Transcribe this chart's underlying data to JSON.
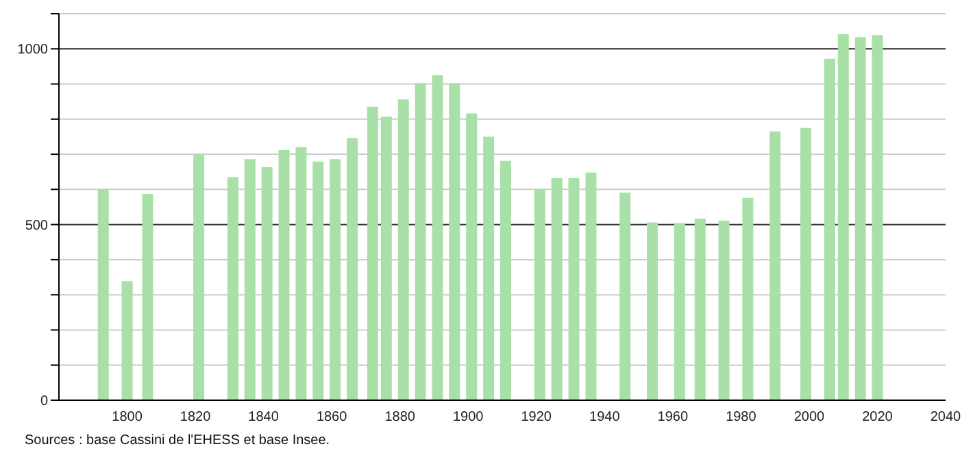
{
  "chart_data": {
    "type": "bar",
    "x": [
      1793,
      1800,
      1806,
      1821,
      1831,
      1836,
      1841,
      1846,
      1851,
      1856,
      1861,
      1866,
      1872,
      1876,
      1881,
      1886,
      1891,
      1896,
      1901,
      1906,
      1911,
      1921,
      1926,
      1931,
      1936,
      1946,
      1954,
      1962,
      1968,
      1975,
      1982,
      1990,
      1999,
      2006,
      2010,
      2015,
      2020
    ],
    "series": [
      {
        "color": "#a8e0a8",
        "values": [
          600,
          339,
          587,
          701,
          635,
          686,
          663,
          712,
          720,
          679,
          686,
          746,
          835,
          807,
          856,
          902,
          925,
          902,
          816,
          750,
          681,
          600,
          632,
          632,
          648,
          591,
          506,
          504,
          517,
          511,
          576,
          765,
          775,
          972,
          1042,
          1033,
          1039
        ]
      }
    ],
    "xlim": [
      1780,
      2040
    ],
    "xticks": [
      1800,
      1820,
      1840,
      1860,
      1880,
      1900,
      1920,
      1940,
      1960,
      1980,
      2000,
      2020,
      2040
    ],
    "ylim": [
      0,
      1100
    ],
    "yticks": [
      0,
      {
        "value": 100,
        "label": null
      },
      {
        "value": 200,
        "label": null
      },
      {
        "value": 300,
        "label": null
      },
      {
        "value": 400,
        "label": null
      },
      500,
      {
        "value": 600,
        "label": null
      },
      {
        "value": 700,
        "label": null
      },
      {
        "value": 800,
        "label": null
      },
      {
        "value": 900,
        "label": null
      },
      1000,
      {
        "value": 1100,
        "label": null
      }
    ],
    "grid": "y",
    "annotations": [
      "Sources : base Cassini de l'EHESS et base Insee."
    ]
  }
}
